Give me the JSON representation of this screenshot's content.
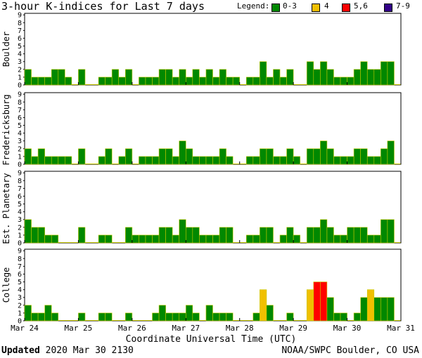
{
  "title": "3-hour K-indices for Last 7 days",
  "legend": {
    "label": "Legend:",
    "items": [
      {
        "label": "0-3",
        "color": "#008800"
      },
      {
        "label": "4",
        "color": "#f0c000"
      },
      {
        "label": "5,6",
        "color": "#ff0000"
      },
      {
        "label": "7-9",
        "color": "#330088"
      }
    ]
  },
  "xlabel": "Coordinate Universal Time (UTC)",
  "footer": {
    "updated_label": "Updated",
    "updated_value": "2020 Mar 30 2130",
    "source": "NOAA/SWPC Boulder, CO USA"
  },
  "chart_data": {
    "type": "bar",
    "x_ticks": [
      "Mar 24",
      "Mar 25",
      "Mar 26",
      "Mar 27",
      "Mar 28",
      "Mar 29",
      "Mar 30",
      "Mar 31"
    ],
    "y_ticks": [
      "0",
      "1",
      "2",
      "3",
      "4",
      "5",
      "6",
      "7",
      "8",
      "9"
    ],
    "ylim": [
      0,
      9
    ],
    "series": [
      {
        "name": "Boulder",
        "values": [
          2,
          1,
          1,
          1,
          2,
          2,
          1,
          0,
          2,
          0,
          0,
          1,
          1,
          2,
          1,
          2,
          0,
          1,
          1,
          1,
          2,
          2,
          1,
          2,
          1,
          2,
          1,
          2,
          1,
          2,
          1,
          1,
          0,
          1,
          1,
          3,
          1,
          2,
          1,
          2,
          0,
          0,
          3,
          2,
          3,
          2,
          1,
          1,
          1,
          2,
          3,
          2,
          2,
          3,
          3,
          0
        ]
      },
      {
        "name": "Fredericksburg",
        "values": [
          2,
          1,
          2,
          1,
          1,
          1,
          1,
          0,
          2,
          0,
          0,
          1,
          2,
          0,
          1,
          2,
          0,
          1,
          1,
          1,
          2,
          2,
          1,
          3,
          2,
          1,
          1,
          1,
          1,
          2,
          1,
          0,
          0,
          1,
          1,
          2,
          2,
          1,
          1,
          2,
          1,
          0,
          2,
          2,
          3,
          2,
          1,
          1,
          1,
          2,
          2,
          1,
          1,
          2,
          3,
          0
        ]
      },
      {
        "name": "Est. Planetary",
        "values": [
          3,
          2,
          2,
          1,
          1,
          0,
          0,
          0,
          2,
          0,
          0,
          1,
          1,
          0,
          0,
          2,
          1,
          1,
          1,
          1,
          2,
          2,
          1,
          3,
          2,
          2,
          1,
          1,
          1,
          2,
          2,
          0,
          0,
          1,
          1,
          2,
          2,
          0,
          1,
          2,
          1,
          0,
          2,
          2,
          3,
          2,
          1,
          1,
          2,
          2,
          2,
          1,
          1,
          3,
          3,
          0
        ]
      },
      {
        "name": "College",
        "values": [
          2,
          1,
          1,
          2,
          1,
          0,
          0,
          0,
          1,
          0,
          0,
          1,
          1,
          0,
          0,
          1,
          0,
          0,
          0,
          1,
          2,
          1,
          1,
          1,
          2,
          1,
          0,
          2,
          1,
          1,
          1,
          0,
          0,
          0,
          1,
          4,
          2,
          0,
          0,
          1,
          0,
          0,
          4,
          5,
          5,
          3,
          1,
          1,
          0,
          1,
          3,
          4,
          3,
          3,
          3,
          0
        ]
      }
    ]
  }
}
